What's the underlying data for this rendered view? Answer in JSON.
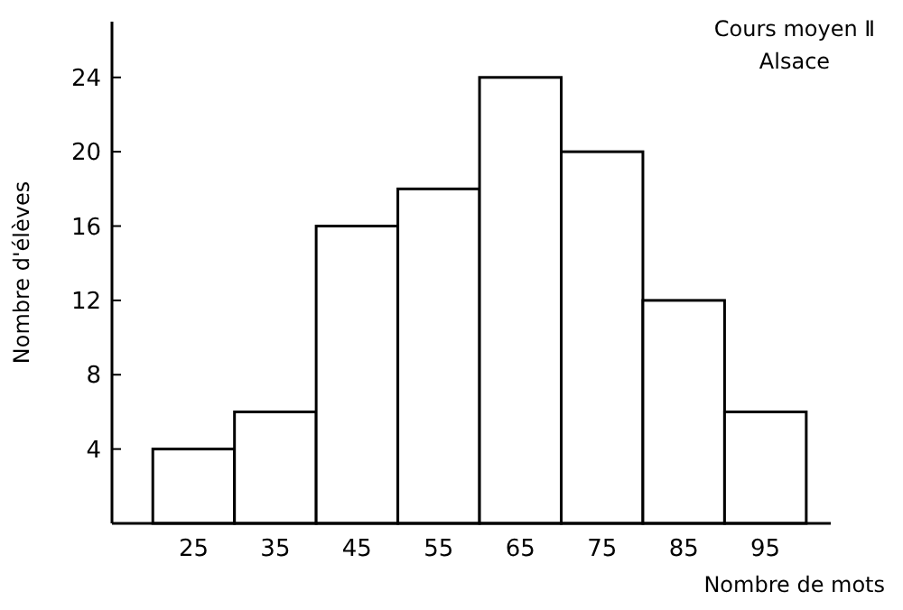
{
  "chart_data": {
    "type": "histogram",
    "title": "Cours moyen Ⅱ",
    "subtitle": "Alsace",
    "xlabel": "Nombre de mots",
    "ylabel": "Nombre d'élèves",
    "bins": [
      20,
      30,
      40,
      50,
      60,
      70,
      80,
      90,
      100
    ],
    "values": [
      4,
      6,
      16,
      18,
      24,
      20,
      12,
      6
    ],
    "color": "#ffffff",
    "xlim": [
      15,
      103
    ],
    "xticks": [
      25,
      35,
      45,
      55,
      65,
      75,
      85,
      95
    ],
    "ylim": [
      0,
      27
    ],
    "yticks": [
      4,
      8,
      12,
      16,
      20,
      24
    ],
    "grid": false
  }
}
